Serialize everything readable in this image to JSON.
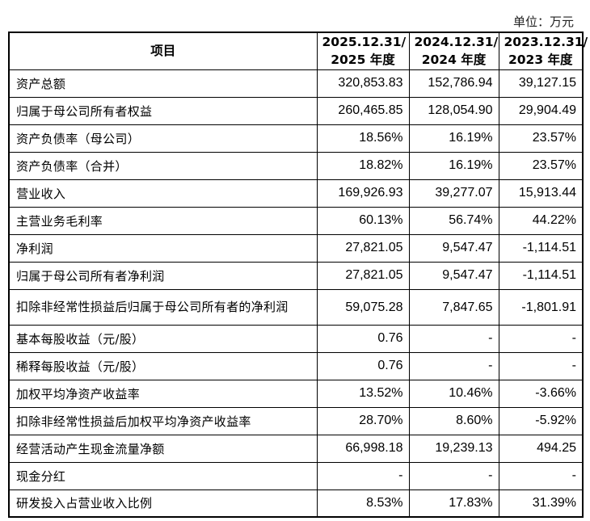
{
  "unit_label": "单位：万元",
  "header": {
    "item": "项目",
    "periods": [
      {
        "line1": "2025.12.31/",
        "line2": "2025 年度"
      },
      {
        "line1": "2024.12.31/",
        "line2": "2024 年度"
      },
      {
        "line1": "2023.12.31/",
        "line2": "2023 年度"
      }
    ]
  },
  "rows": [
    {
      "label": "资产总额",
      "values": [
        "320,853.83",
        "152,786.94",
        "39,127.15"
      ]
    },
    {
      "label": "归属于母公司所有者权益",
      "values": [
        "260,465.85",
        "128,054.90",
        "29,904.49"
      ]
    },
    {
      "label": "资产负债率（母公司）",
      "values": [
        "18.56%",
        "16.19%",
        "23.57%"
      ]
    },
    {
      "label": "资产负债率（合并）",
      "values": [
        "18.82%",
        "16.19%",
        "23.57%"
      ]
    },
    {
      "label": "营业收入",
      "values": [
        "169,926.93",
        "39,277.07",
        "15,913.44"
      ]
    },
    {
      "label": "主营业务毛利率",
      "values": [
        "60.13%",
        "56.74%",
        "44.22%"
      ]
    },
    {
      "label": "净利润",
      "values": [
        "27,821.05",
        "9,547.47",
        "-1,114.51"
      ]
    },
    {
      "label": "归属于母公司所有者净利润",
      "values": [
        "27,821.05",
        "9,547.47",
        "-1,114.51"
      ]
    },
    {
      "label": "扣除非经常性损益后归属于母公司所有者的净利润",
      "values": [
        "59,075.28",
        "7,847.65",
        "-1,801.91"
      ]
    },
    {
      "label": "基本每股收益（元/股）",
      "values": [
        "0.76",
        "-",
        "-"
      ]
    },
    {
      "label": "稀释每股收益（元/股）",
      "values": [
        "0.76",
        "-",
        "-"
      ]
    },
    {
      "label": "加权平均净资产收益率",
      "values": [
        "13.52%",
        "10.46%",
        "-3.66%"
      ]
    },
    {
      "label": "扣除非经常性损益后加权平均净资产收益率",
      "values": [
        "28.70%",
        "8.60%",
        "-5.92%"
      ]
    },
    {
      "label": "经营活动产生现金流量净额",
      "values": [
        "66,998.18",
        "19,239.13",
        "494.25"
      ]
    },
    {
      "label": "现金分红",
      "values": [
        "-",
        "-",
        "-"
      ]
    },
    {
      "label": "研发投入占营业收入比例",
      "values": [
        "8.53%",
        "17.83%",
        "31.39%"
      ]
    }
  ]
}
